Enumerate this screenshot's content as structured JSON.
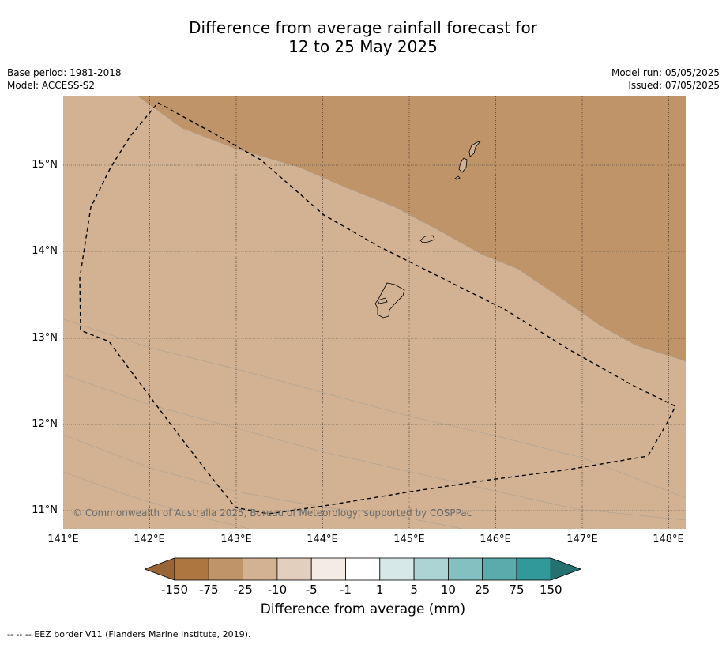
{
  "title": {
    "line1": "Difference from average rainfall forecast for",
    "line2": "12 to 25 May 2025"
  },
  "meta": {
    "base_period": "Base period: 1981-2018",
    "model": "Model: ACCESS-S2",
    "model_run": "Model run: 05/05/2025",
    "issued": "Issued: 07/05/2025"
  },
  "map": {
    "lon_range": [
      141.0,
      148.2
    ],
    "lat_range": [
      10.8,
      15.8
    ],
    "lon_ticks": [
      "141°E",
      "142°E",
      "143°E",
      "144°E",
      "145°E",
      "146°E",
      "147°E",
      "148°E"
    ],
    "lat_ticks": [
      "15°N",
      "14°N",
      "13°N",
      "12°N",
      "11°N"
    ],
    "copyright": "© Commonwealth of Australia 2025, Bureau of Meteorology, supported by COSPPac",
    "islands": [
      "Guam",
      "Rota",
      "Tinian",
      "Saipan"
    ]
  },
  "colorbar": {
    "labels": [
      "-150",
      "-75",
      "-25",
      "-10",
      "-5",
      "-1",
      "1",
      "5",
      "10",
      "25",
      "75",
      "150"
    ],
    "colors": [
      "#9a6536",
      "#ad7641",
      "#c09469",
      "#d2b292",
      "#e3cfbd",
      "#f4ebe4",
      "#ffffff",
      "#d6e8e7",
      "#add4d4",
      "#84c0c1",
      "#59abac",
      "#31999a",
      "#257070"
    ],
    "title": "Difference from average (mm)"
  },
  "footnote": "--  --  -- EEZ border V11 (Flanders Marine Institute, 2019)."
}
